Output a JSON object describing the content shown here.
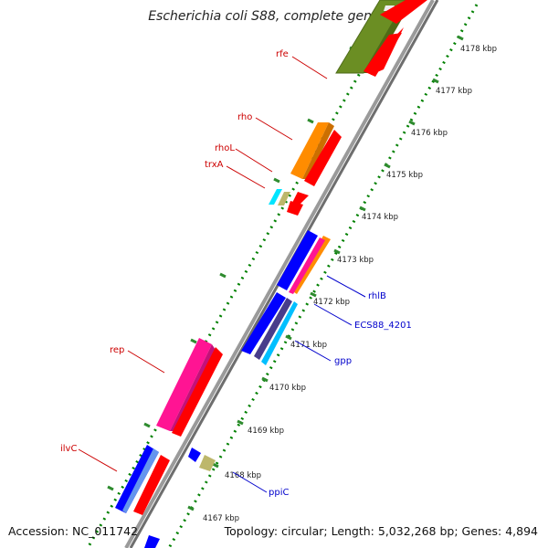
{
  "title": "Escherichia coli S88, complete genome",
  "footer": {
    "accession": "Accession: NC_011742",
    "summary": "Topology: circular; Length: 5,032,268 bp; Genes: 4,894"
  },
  "ticks": [
    "4167 kbp",
    "4168 kbp",
    "4169 kbp",
    "4170 kbp",
    "4171 kbp",
    "4172 kbp",
    "4173 kbp",
    "4174 kbp",
    "4175 kbp",
    "4176 kbp",
    "4177 kbp",
    "4178 kbp"
  ],
  "genes": {
    "rfe": "rfe",
    "rho": "rho",
    "rhoL": "rhoL",
    "trxA": "trxA",
    "rep": "rep",
    "ilvC": "ilvC",
    "rhlB": "rhlB",
    "ecs": "ECS88_4201",
    "gpp": "gpp",
    "ppiC": "ppiC"
  },
  "colors": {
    "backbone": "#8c8c8c",
    "feature_red": "#ff0000",
    "rfe": "#6b8e23",
    "rho": "#ff8c00",
    "rep": "#ff1493",
    "blue": "#0000ff",
    "cyan": "#00bfff",
    "olive_small": "#bdb76b",
    "dots_green": "#008000",
    "label_red": "#cc0000",
    "label_blue": "#0000cc"
  }
}
